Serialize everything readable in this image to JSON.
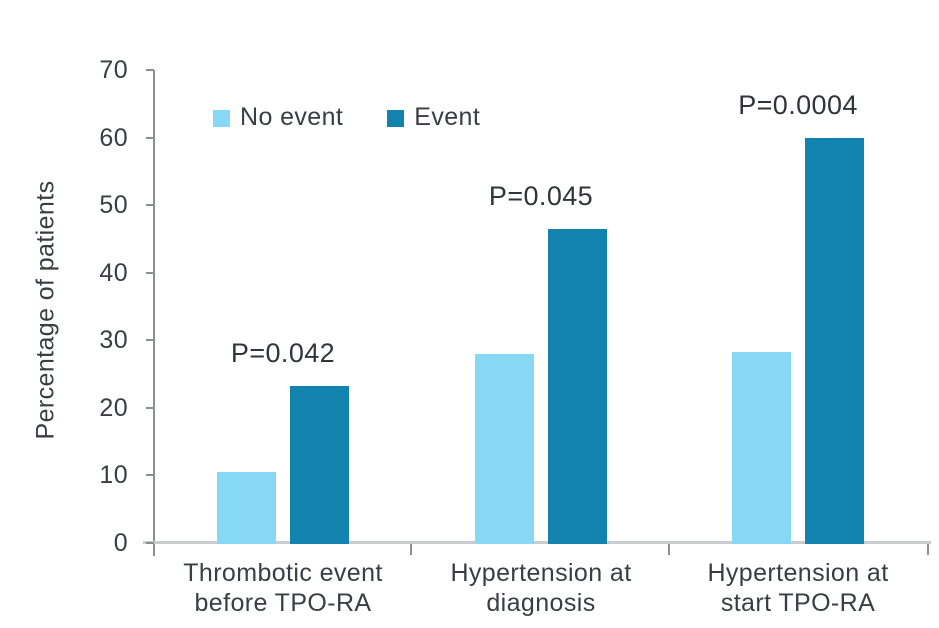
{
  "chart_data": {
    "type": "bar",
    "title": "",
    "ylabel": "Percentage of patients",
    "xlabel": "",
    "ylim": [
      0,
      70
    ],
    "ytick_step": 10,
    "ytick_labels": [
      "0",
      "10",
      "20",
      "30",
      "40",
      "50",
      "60",
      "70"
    ],
    "grid": false,
    "legend_position": "top-left-inside",
    "categories": [
      [
        "Thrombotic event",
        "before TPO-RA"
      ],
      [
        "Hypertension at",
        "diagnosis"
      ],
      [
        "Hypertension at",
        "start TPO-RA"
      ]
    ],
    "series": [
      {
        "name": "No event",
        "color": "#87d8f3",
        "values": [
          10.5,
          28.0,
          28.3
        ]
      },
      {
        "name": "Event",
        "color": "#1283af",
        "values": [
          23.3,
          46.5,
          60.0
        ]
      }
    ],
    "p_values": [
      "P=0.042",
      "P=0.045",
      "P=0.0004"
    ]
  },
  "colors": {
    "background": "#ffffff",
    "axis_line": "#8b8f92",
    "baseline": "#c9cdd0",
    "text": "#383e44",
    "p_value_text": "#2f353b"
  }
}
